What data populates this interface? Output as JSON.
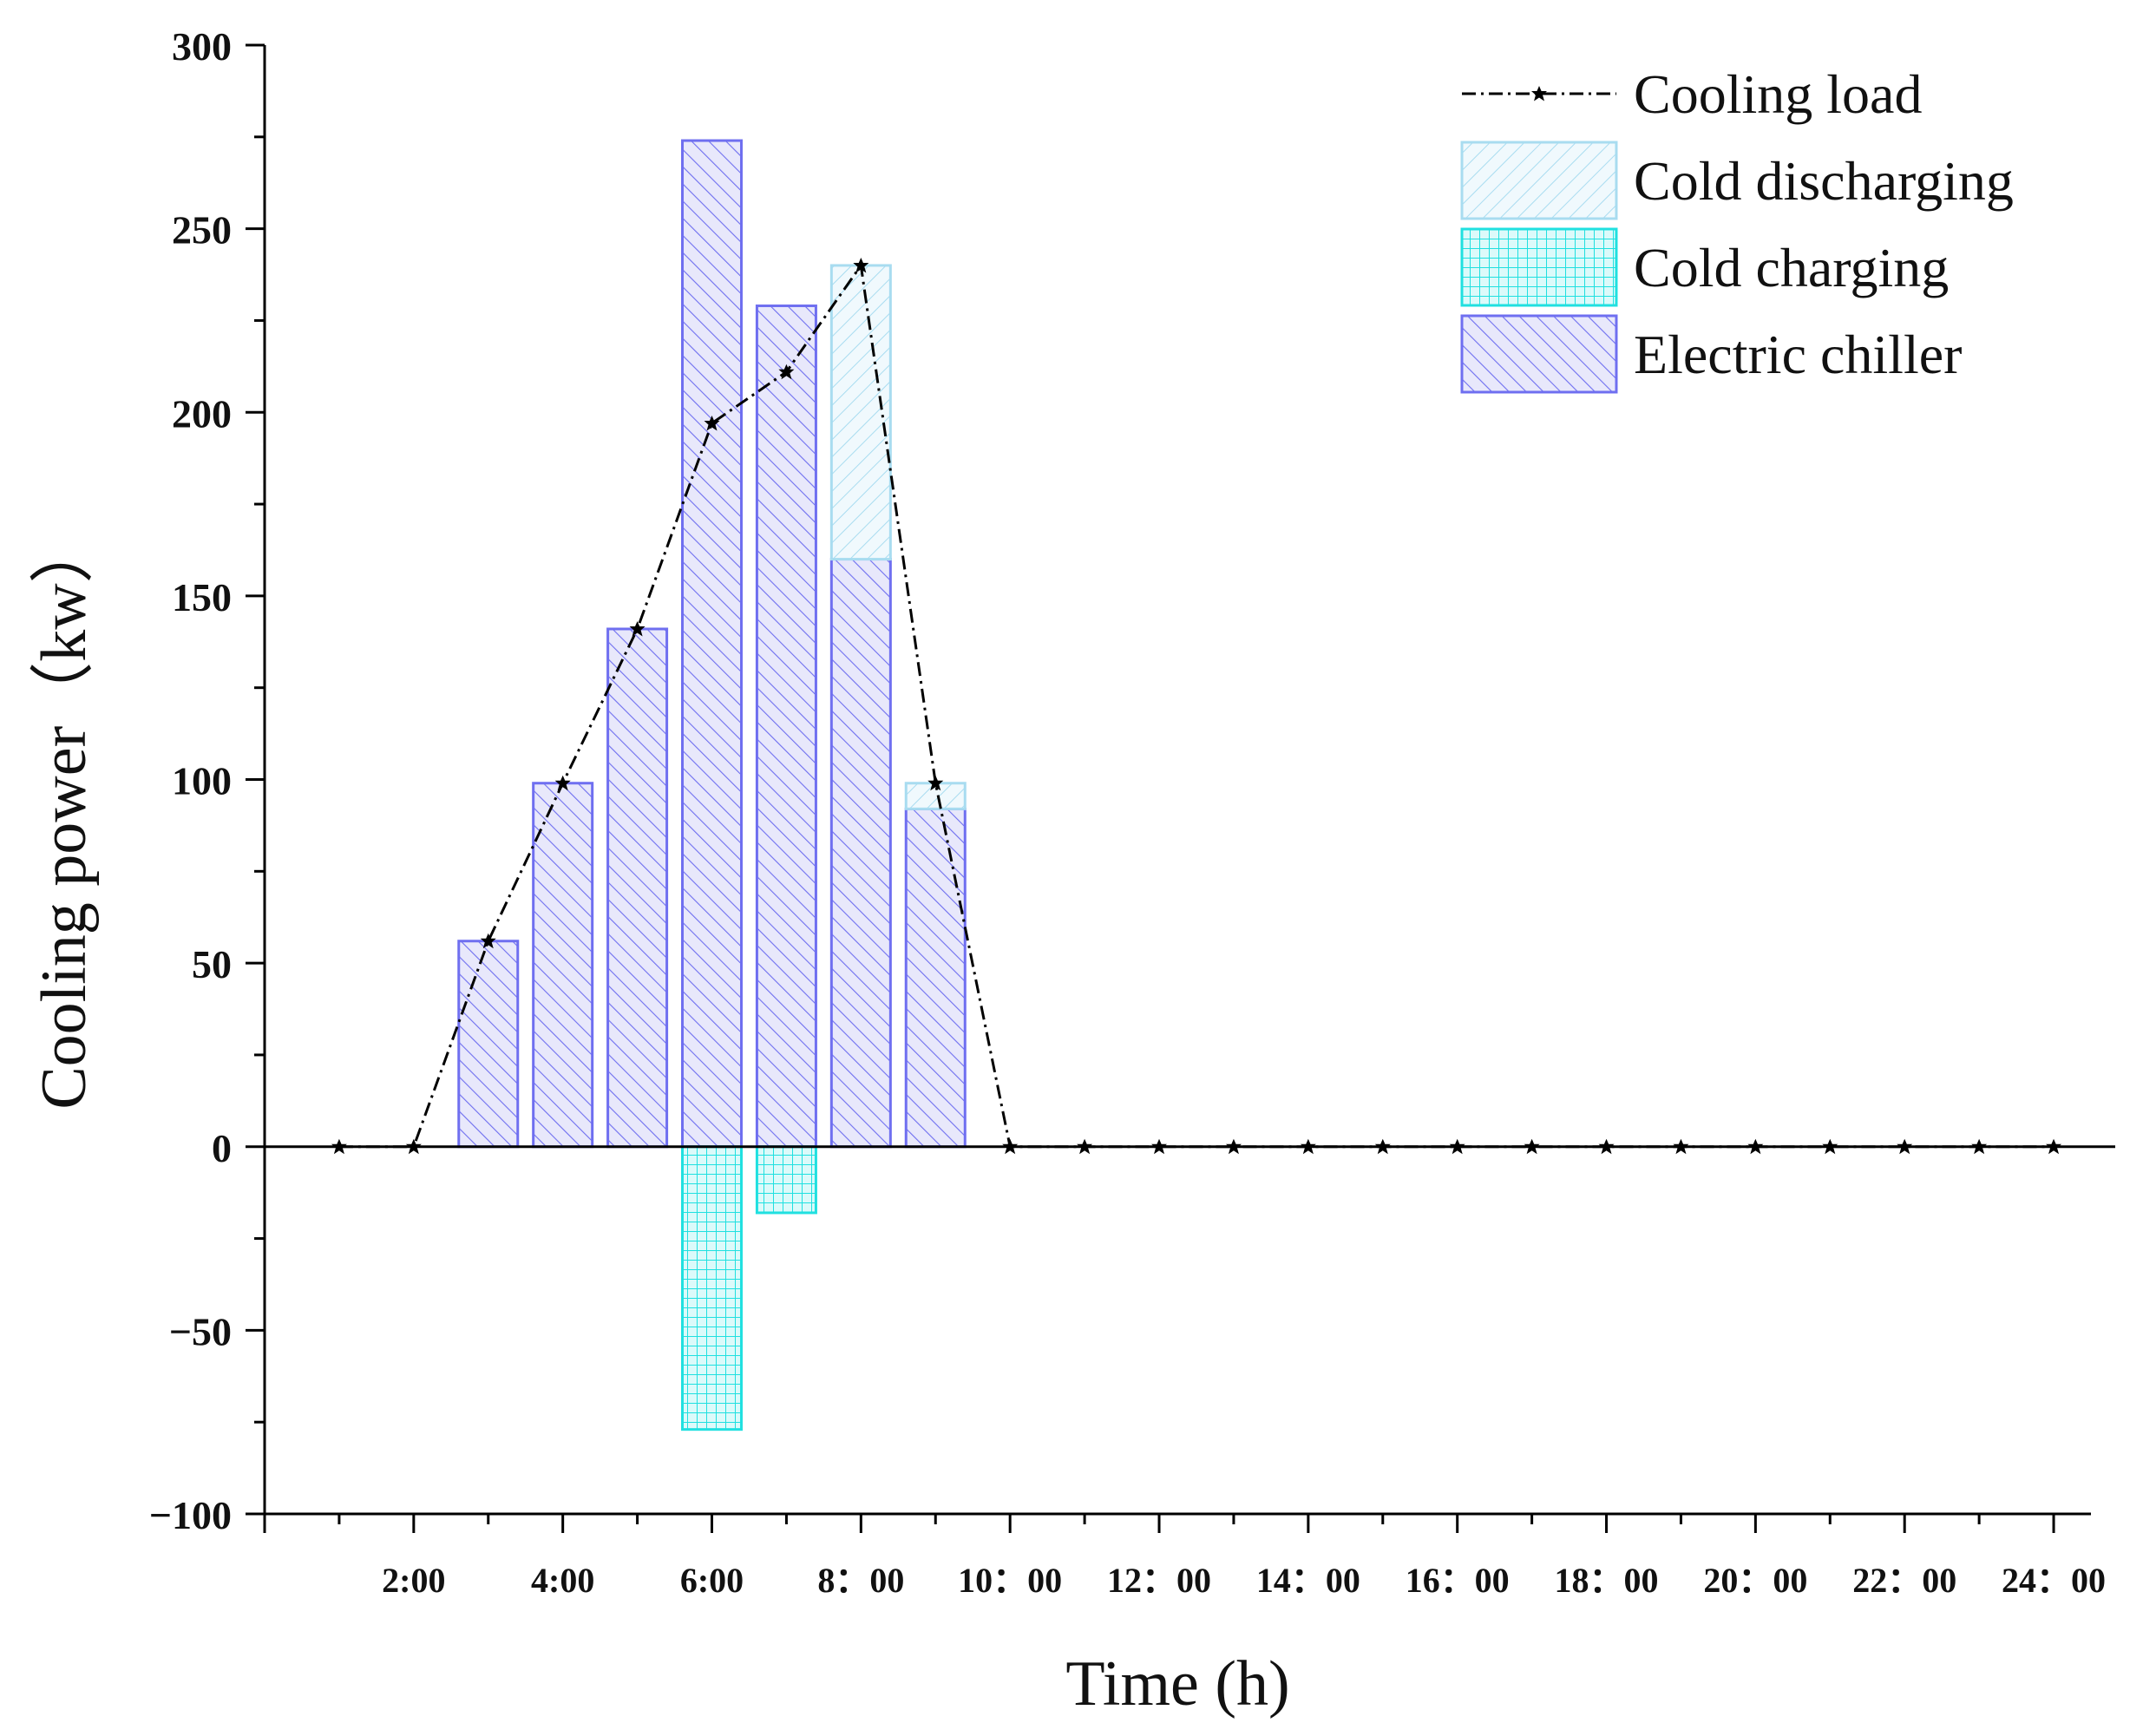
{
  "chart_data": {
    "type": "bar",
    "title": "",
    "xlabel": "Time (h)",
    "ylabel": "Cooling power（kw）",
    "ylim": [
      -100,
      300
    ],
    "xlim": [
      0,
      24.5
    ],
    "yticks": [
      -100,
      -50,
      0,
      50,
      100,
      150,
      200,
      250,
      300
    ],
    "x_tick_labels": [
      {
        "x": 2,
        "label": "2:00"
      },
      {
        "x": 4,
        "label": "4:00"
      },
      {
        "x": 6,
        "label": "6:00"
      },
      {
        "x": 8,
        "label": "8：00"
      },
      {
        "x": 10,
        "label": "10：00"
      },
      {
        "x": 12,
        "label": "12：00"
      },
      {
        "x": 14,
        "label": "14：00"
      },
      {
        "x": 16,
        "label": "16：00"
      },
      {
        "x": 18,
        "label": "18：00"
      },
      {
        "x": 20,
        "label": "20：00"
      },
      {
        "x": 22,
        "label": "22：00"
      },
      {
        "x": 24,
        "label": "24：00"
      }
    ],
    "hours": [
      1,
      2,
      3,
      4,
      5,
      6,
      7,
      8,
      9,
      10,
      11,
      12,
      13,
      14,
      15,
      16,
      17,
      18,
      19,
      20,
      21,
      22,
      23,
      24
    ],
    "series": [
      {
        "name": "Cooling load",
        "kind": "line",
        "color": "#000000",
        "values": [
          0,
          0,
          56,
          99,
          141,
          197,
          211,
          240,
          99,
          0,
          0,
          0,
          0,
          0,
          0,
          0,
          0,
          0,
          0,
          0,
          0,
          0,
          0,
          0
        ]
      },
      {
        "name": "Cold discharging",
        "kind": "bar-stacked",
        "color": "#a8dcf0",
        "values": [
          0,
          0,
          0,
          0,
          0,
          0,
          0,
          80,
          7,
          0,
          0,
          0,
          0,
          0,
          0,
          0,
          0,
          0,
          0,
          0,
          0,
          0,
          0,
          0
        ]
      },
      {
        "name": "Cold charging",
        "kind": "bar",
        "color": "#20e0e0",
        "values": [
          0,
          0,
          0,
          0,
          0,
          -77,
          -18,
          0,
          0,
          0,
          0,
          0,
          0,
          0,
          0,
          0,
          0,
          0,
          0,
          0,
          0,
          0,
          0,
          0
        ]
      },
      {
        "name": "Electric chiller",
        "kind": "bar",
        "color": "#6f6ff0",
        "values": [
          0,
          0,
          56,
          99,
          141,
          274,
          229,
          160,
          92,
          0,
          0,
          0,
          0,
          0,
          0,
          0,
          0,
          0,
          0,
          0,
          0,
          0,
          0,
          0
        ]
      }
    ],
    "legend": {
      "position": "top-right",
      "entries": [
        "Cooling load",
        "Cold discharging",
        "Cold charging",
        "Electric chiller"
      ]
    },
    "grid": false
  }
}
